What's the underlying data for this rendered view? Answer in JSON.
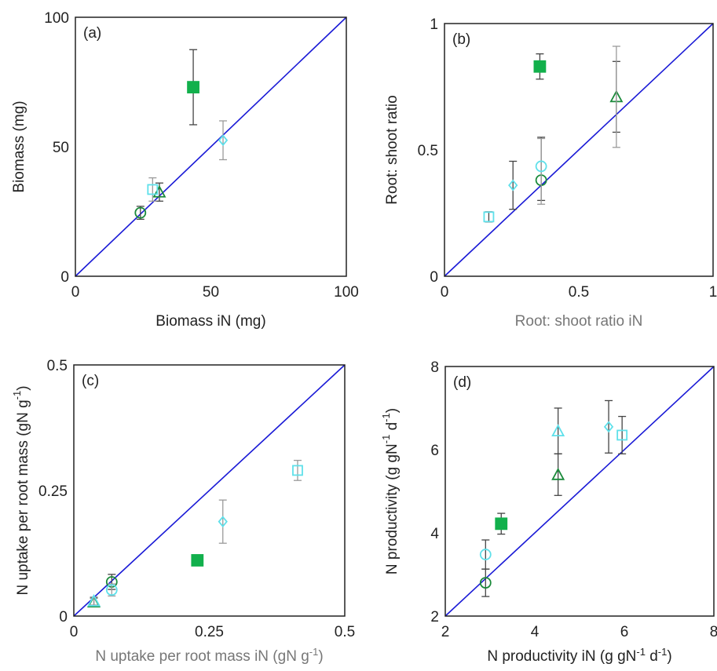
{
  "colors": {
    "identity_line": "#1a1ad6",
    "dark_green": "#1a8a3a",
    "bright_green_fill": "#12b04c",
    "cyan": "#5fe0ea",
    "error_dark": "#444444",
    "error_light": "#9a9a9a"
  },
  "chart_data": [
    {
      "type": "scatter",
      "panel_label": "(a)",
      "xlabel": "Biomass iN (mg)",
      "ylabel": "Biomass (mg)",
      "xlim": [
        0,
        100
      ],
      "ylim": [
        0,
        100
      ],
      "x_ticks": [
        "0",
        "50",
        "100"
      ],
      "y_ticks": [
        "0",
        "50",
        "100"
      ],
      "identity_line": true,
      "points": [
        {
          "x": 24,
          "y": 24.5,
          "err_low": 2.5,
          "err_high": 2.5,
          "marker": "circle",
          "color": "dark_green",
          "err_color": "error_dark"
        },
        {
          "x": 43.5,
          "y": 73,
          "err_low": 14.5,
          "err_high": 14.5,
          "marker": "square-filled",
          "color": "bright_green_fill",
          "err_color": "error_dark"
        },
        {
          "x": 31,
          "y": 32.5,
          "err_low": 3.5,
          "err_high": 3.5,
          "marker": "triangle",
          "color": "dark_green",
          "err_color": "error_dark"
        },
        {
          "x": 28.5,
          "y": 33.5,
          "err_low": 4.5,
          "err_high": 4.5,
          "marker": "square",
          "color": "cyan",
          "err_color": "error_light"
        },
        {
          "x": 54.5,
          "y": 52.5,
          "err_low": 7.5,
          "err_high": 7.5,
          "marker": "diamond",
          "color": "cyan",
          "err_color": "error_light"
        }
      ]
    },
    {
      "type": "scatter",
      "panel_label": "(b)",
      "xlabel": "Root: shoot ratio iN",
      "ylabel": "Root: shoot ratio",
      "xlim": [
        0,
        1
      ],
      "ylim": [
        0,
        1
      ],
      "x_ticks": [
        "0",
        "0.5",
        "1"
      ],
      "y_ticks": [
        "0",
        "0.5",
        "1"
      ],
      "identity_line": true,
      "points": [
        {
          "x": 0.36,
          "y": 0.38,
          "err_low": 0.08,
          "err_high": 0.17,
          "marker": "circle",
          "color": "dark_green",
          "err_color": "error_dark"
        },
        {
          "x": 0.355,
          "y": 0.83,
          "err_low": 0.05,
          "err_high": 0.05,
          "marker": "square-filled",
          "color": "bright_green_fill",
          "err_color": "error_dark"
        },
        {
          "x": 0.64,
          "y": 0.71,
          "err_low": 0.14,
          "err_high": 0.14,
          "marker": "triangle",
          "color": "dark_green",
          "err_color": "error_dark"
        },
        {
          "x": 0.64,
          "y": 0.71,
          "err_low": 0.2,
          "err_high": 0.2,
          "marker": "none",
          "color": "dark_green",
          "err_color": "error_light"
        },
        {
          "x": 0.165,
          "y": 0.235,
          "err_low": 0.02,
          "err_high": 0.02,
          "marker": "square",
          "color": "cyan",
          "err_color": "error_dark"
        },
        {
          "x": 0.36,
          "y": 0.435,
          "err_low": 0.15,
          "err_high": 0.11,
          "marker": "circle",
          "color": "cyan",
          "err_color": "error_light"
        },
        {
          "x": 0.255,
          "y": 0.36,
          "err_low": 0.095,
          "err_high": 0.095,
          "marker": "diamond",
          "color": "cyan",
          "err_color": "error_dark"
        }
      ]
    },
    {
      "type": "scatter",
      "panel_label": "(c)",
      "xlabel": "N uptake per root mass iN (gN g-1)",
      "xlabel_main": "N uptake per root mass iN (gN g",
      "xlabel_sup": "-1",
      "xlabel_end": ")",
      "ylabel_main": "N uptake per root mass (gN g",
      "ylabel_sup": "-1",
      "ylabel_end": ")",
      "xlim": [
        0,
        0.5
      ],
      "ylim": [
        0,
        0.5
      ],
      "x_ticks": [
        "0",
        "0.25",
        "0.5"
      ],
      "y_ticks": [
        "0",
        "0.25",
        "0.5"
      ],
      "identity_line": true,
      "points": [
        {
          "x": 0.07,
          "y": 0.068,
          "err_low": 0.015,
          "err_high": 0.015,
          "marker": "circle",
          "color": "dark_green",
          "err_color": "error_dark"
        },
        {
          "x": 0.228,
          "y": 0.111,
          "err_low": 0,
          "err_high": 0,
          "marker": "square-filled",
          "color": "bright_green_fill",
          "err_color": "error_dark"
        },
        {
          "x": 0.037,
          "y": 0.028,
          "err_low": 0.008,
          "err_high": 0.008,
          "marker": "triangle",
          "color": "dark_green",
          "err_color": "error_dark"
        },
        {
          "x": 0.413,
          "y": 0.29,
          "err_low": 0.02,
          "err_high": 0.02,
          "marker": "square",
          "color": "cyan",
          "err_color": "error_light"
        },
        {
          "x": 0.07,
          "y": 0.052,
          "err_low": 0.012,
          "err_high": 0.012,
          "marker": "circle",
          "color": "cyan",
          "err_color": "error_light"
        },
        {
          "x": 0.037,
          "y": 0.03,
          "err_low": 0.008,
          "err_high": 0.008,
          "marker": "triangle",
          "color": "cyan",
          "err_color": "error_light"
        },
        {
          "x": 0.275,
          "y": 0.188,
          "err_low": 0.043,
          "err_high": 0.043,
          "marker": "diamond",
          "color": "cyan",
          "err_color": "error_light"
        }
      ]
    },
    {
      "type": "scatter",
      "panel_label": "(d)",
      "xlabel": "N productivity iN (g gN-1 d-1)",
      "xlabel_main": "N productivity iN (g gN",
      "xlabel_sup1": "-1",
      "xlabel_mid": " d",
      "xlabel_sup2": "-1",
      "xlabel_end": ")",
      "ylabel_main": "N productivity (g gN",
      "ylabel_sup1": "-1",
      "ylabel_mid": " d",
      "ylabel_sup2": "-1",
      "ylabel_end": ")",
      "xlim": [
        2,
        8
      ],
      "ylim": [
        2,
        8
      ],
      "x_ticks": [
        "2",
        "4",
        "6",
        "8"
      ],
      "y_ticks": [
        "2",
        "4",
        "6",
        "8"
      ],
      "identity_line": true,
      "points": [
        {
          "x": 2.9,
          "y": 2.8,
          "err_low": 0.33,
          "err_high": 0.33,
          "marker": "circle",
          "color": "dark_green",
          "err_color": "error_dark"
        },
        {
          "x": 3.25,
          "y": 4.22,
          "err_low": 0.25,
          "err_high": 0.25,
          "marker": "square-filled",
          "color": "bright_green_fill",
          "err_color": "error_dark"
        },
        {
          "x": 4.52,
          "y": 5.4,
          "err_low": 0.5,
          "err_high": 0.5,
          "marker": "triangle",
          "color": "dark_green",
          "err_color": "error_dark"
        },
        {
          "x": 4.52,
          "y": 6.45,
          "err_low": 0.55,
          "err_high": 0.55,
          "marker": "triangle",
          "color": "cyan",
          "err_color": "error_dark"
        },
        {
          "x": 2.9,
          "y": 3.48,
          "err_low": 0.35,
          "err_high": 0.35,
          "marker": "circle",
          "color": "cyan",
          "err_color": "error_dark"
        },
        {
          "x": 5.65,
          "y": 6.55,
          "err_low": 0.63,
          "err_high": 0.63,
          "marker": "diamond",
          "color": "cyan",
          "err_color": "error_dark"
        },
        {
          "x": 5.95,
          "y": 6.35,
          "err_low": 0.45,
          "err_high": 0.45,
          "marker": "square",
          "color": "cyan",
          "err_color": "error_dark"
        }
      ]
    }
  ]
}
